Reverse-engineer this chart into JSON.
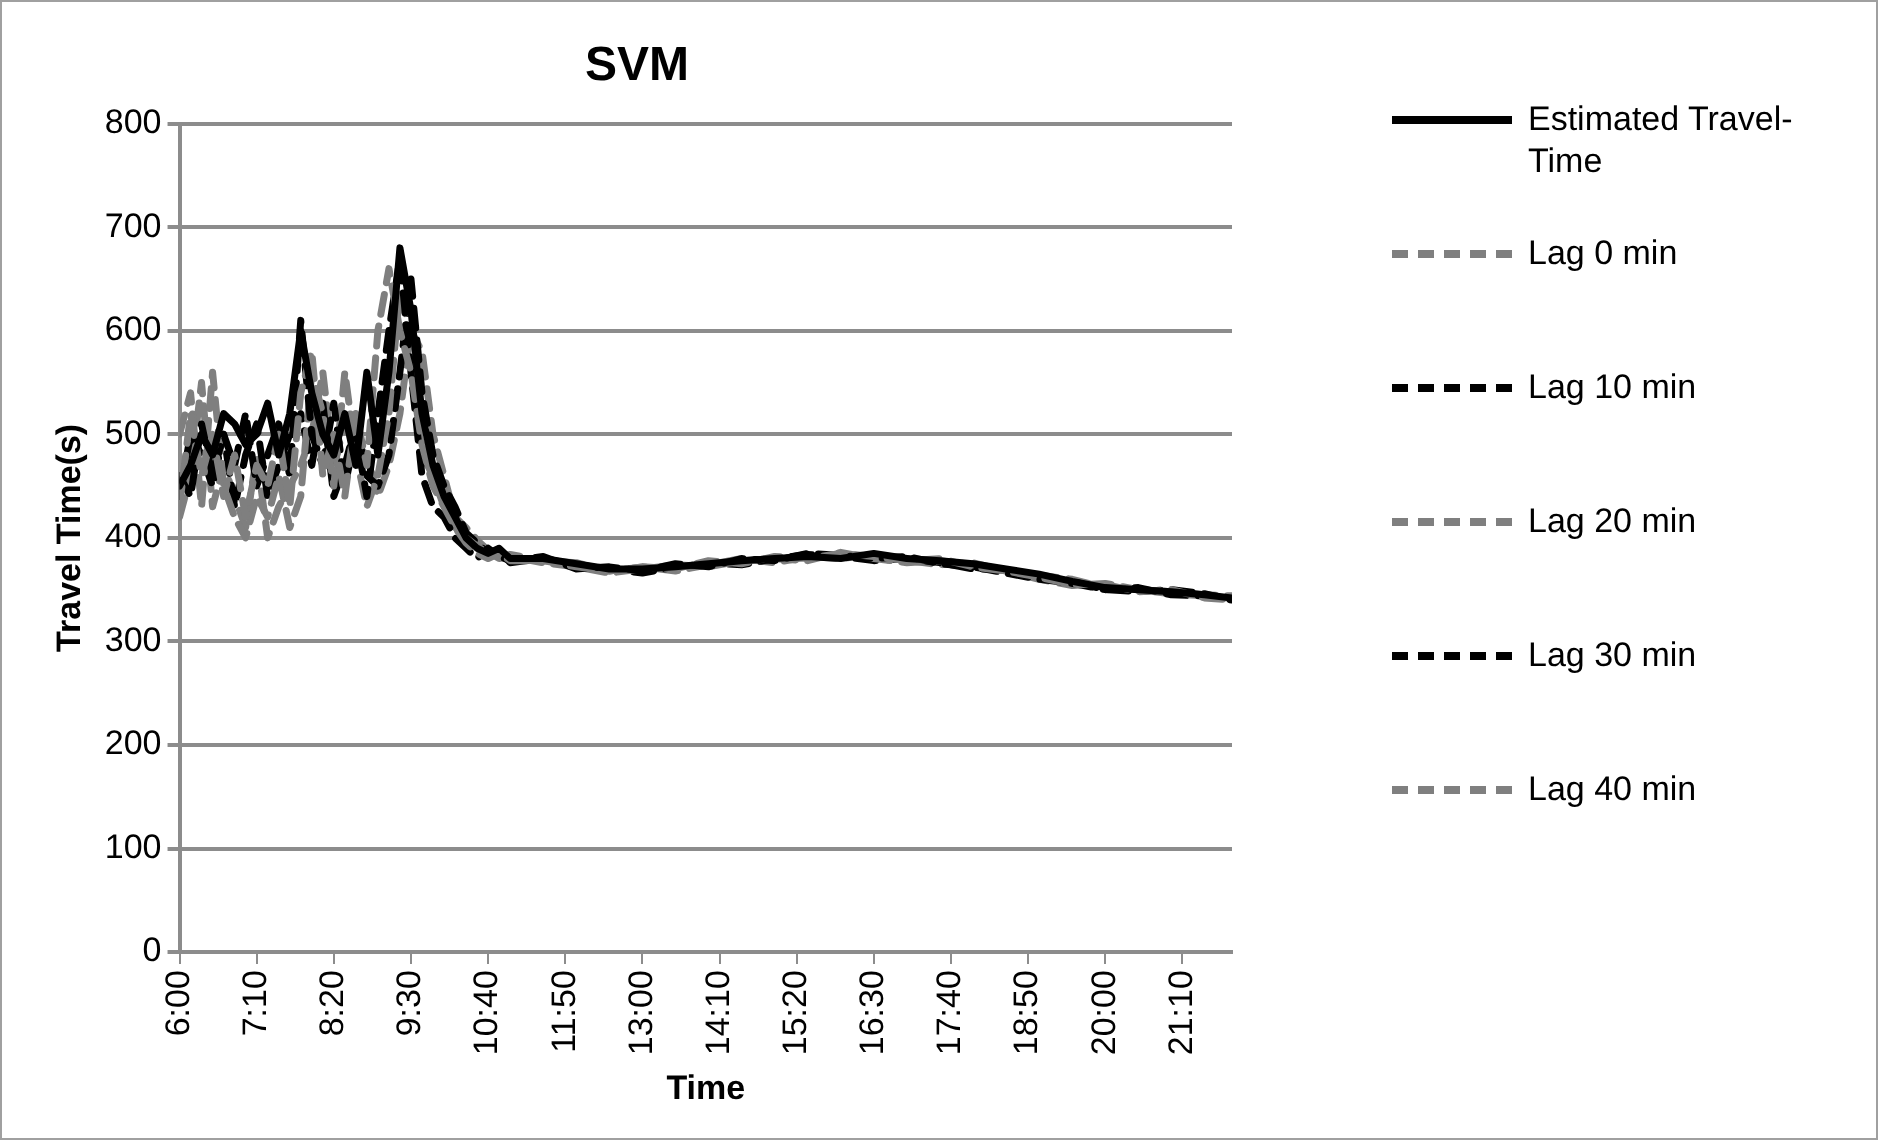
{
  "chart_data": {
    "type": "line",
    "title": "SVM",
    "xlabel": "Time",
    "ylabel": "Travel Time(s)",
    "x": [
      6,
      6.167,
      6.333,
      6.5,
      6.667,
      6.833,
      7,
      7.167,
      7.333,
      7.5,
      7.667,
      7.833,
      8,
      8.167,
      8.333,
      8.5,
      8.667,
      8.833,
      9,
      9.167,
      9.333,
      9.5,
      9.667,
      9.833,
      10,
      10.167,
      10.333,
      10.5,
      10.667,
      10.833,
      11,
      11.5,
      12,
      12.5,
      13,
      13.5,
      14,
      14.5,
      15,
      15.5,
      16,
      16.5,
      17,
      17.5,
      18,
      18.5,
      19,
      19.5,
      20,
      20.5,
      21,
      21.5,
      21.917
    ],
    "xlim": [
      6,
      21.917
    ],
    "xticks": [
      {
        "value": 6,
        "label": "6:00"
      },
      {
        "value": 7.167,
        "label": "7:10"
      },
      {
        "value": 8.333,
        "label": "8:20"
      },
      {
        "value": 9.5,
        "label": "9:30"
      },
      {
        "value": 10.667,
        "label": "10:40"
      },
      {
        "value": 11.833,
        "label": "11:50"
      },
      {
        "value": 13,
        "label": "13:00"
      },
      {
        "value": 14.167,
        "label": "14:10"
      },
      {
        "value": 15.333,
        "label": "15:20"
      },
      {
        "value": 16.5,
        "label": "16:30"
      },
      {
        "value": 17.667,
        "label": "17:40"
      },
      {
        "value": 18.833,
        "label": "18:50"
      },
      {
        "value": 20,
        "label": "20:00"
      },
      {
        "value": 21.167,
        "label": "21:10"
      }
    ],
    "ylim": [
      0,
      800
    ],
    "yticks": [
      0,
      100,
      200,
      300,
      400,
      500,
      600,
      700,
      800
    ],
    "grid": "y",
    "legend": "right",
    "series": [
      {
        "name": "Estimated Travel-Time",
        "color": "#000000",
        "line_style": "solid",
        "values": [
          450,
          470,
          500,
          480,
          520,
          510,
          490,
          500,
          530,
          480,
          520,
          600,
          540,
          500,
          480,
          520,
          470,
          560,
          480,
          560,
          680,
          620,
          520,
          470,
          440,
          420,
          400,
          390,
          385,
          390,
          380,
          380,
          375,
          370,
          370,
          372,
          375,
          378,
          380,
          382,
          380,
          385,
          380,
          378,
          375,
          370,
          365,
          358,
          352,
          350,
          348,
          345,
          342
        ]
      },
      {
        "name": "Lag 0 min",
        "color": "#7f7f7f",
        "line_style": "dashed",
        "values": [
          430,
          520,
          460,
          500,
          440,
          480,
          420,
          470,
          450,
          500,
          430,
          540,
          580,
          460,
          500,
          440,
          520,
          470,
          600,
          660,
          600,
          560,
          490,
          450,
          430,
          410,
          395,
          385,
          380,
          385,
          378,
          378,
          372,
          368,
          372,
          370,
          378,
          375,
          382,
          380,
          385,
          382,
          378,
          380,
          372,
          368,
          362,
          355,
          355,
          348,
          350,
          342,
          340
        ]
      },
      {
        "name": "Lag 10 min",
        "color": "#000000",
        "line_style": "dashed",
        "values": [
          460,
          440,
          510,
          460,
          500,
          470,
          520,
          450,
          480,
          510,
          460,
          610,
          500,
          470,
          530,
          450,
          500,
          440,
          520,
          600,
          670,
          560,
          460,
          430,
          420,
          400,
          390,
          380,
          390,
          382,
          378,
          382,
          370,
          372,
          368,
          375,
          372,
          380,
          378,
          385,
          383,
          380,
          382,
          375,
          372,
          366,
          360,
          356,
          350,
          352,
          345,
          344,
          340
        ]
      },
      {
        "name": "Lag 20 min",
        "color": "#7f7f7f",
        "line_style": "dashed",
        "values": [
          500,
          540,
          430,
          560,
          450,
          420,
          400,
          440,
          420,
          460,
          410,
          440,
          560,
          520,
          450,
          560,
          480,
          430,
          460,
          520,
          640,
          590,
          480,
          460,
          430,
          410,
          400,
          392,
          386,
          380,
          382,
          376,
          372,
          366,
          370,
          374,
          372,
          378,
          380,
          378,
          386,
          380,
          376,
          378,
          374,
          368,
          360,
          354,
          356,
          350,
          346,
          344,
          342
        ]
      },
      {
        "name": "Lag 30 min",
        "color": "#000000",
        "line_style": "dashed",
        "values": [
          440,
          500,
          480,
          450,
          500,
          430,
          480,
          510,
          440,
          470,
          500,
          520,
          470,
          530,
          440,
          470,
          510,
          460,
          450,
          480,
          560,
          650,
          540,
          480,
          450,
          430,
          405,
          395,
          385,
          388,
          376,
          380,
          374,
          370,
          366,
          372,
          376,
          374,
          380,
          384,
          382,
          378,
          380,
          376,
          370,
          370,
          362,
          358,
          350,
          348,
          350,
          346,
          340
        ]
      },
      {
        "name": "Lag 40 min",
        "color": "#7f7f7f",
        "line_style": "dashed",
        "values": [
          420,
          460,
          550,
          430,
          470,
          440,
          410,
          480,
          400,
          430,
          450,
          470,
          500,
          560,
          470,
          510,
          490,
          480,
          440,
          470,
          520,
          600,
          580,
          500,
          460,
          420,
          410,
          398,
          388,
          382,
          384,
          378,
          376,
          368,
          372,
          368,
          374,
          380,
          376,
          382,
          380,
          384,
          378,
          374,
          376,
          368,
          364,
          360,
          352,
          350,
          348,
          345,
          344
        ]
      }
    ]
  }
}
